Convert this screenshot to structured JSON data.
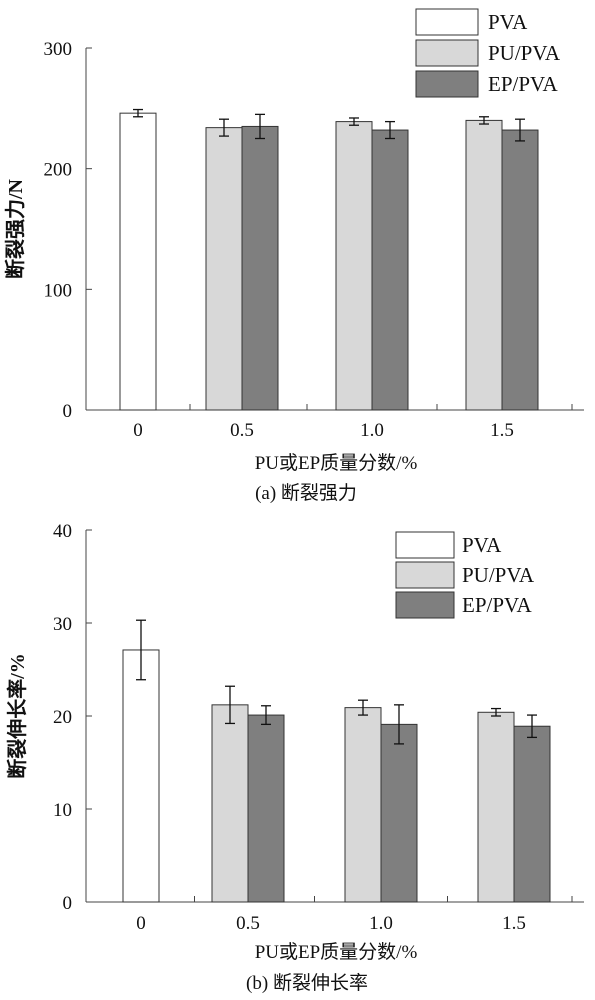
{
  "chart_data": [
    {
      "type": "bar",
      "categories": [
        "0",
        "0.5",
        "1.0",
        "1.5"
      ],
      "xlabel": "PU或EP质量分数/%",
      "ylabel": "断裂强力/N",
      "caption": "(a) 断裂强力",
      "ylim": [
        0,
        300
      ],
      "yticks": [
        0,
        100,
        200,
        300
      ],
      "series": [
        {
          "name": "PVA",
          "color": "#ffffff",
          "values": [
            246,
            null,
            null,
            null
          ],
          "errors": [
            3,
            null,
            null,
            null
          ]
        },
        {
          "name": "PU/PVA",
          "color": "#d8d8d8",
          "values": [
            null,
            234,
            239,
            240
          ],
          "errors": [
            null,
            7,
            3,
            3
          ]
        },
        {
          "name": "EP/PVA",
          "color": "#7f7f7f",
          "values": [
            null,
            235,
            232,
            232
          ],
          "errors": [
            null,
            10,
            7,
            9
          ]
        }
      ],
      "legend_position": "top-right",
      "grid": false
    },
    {
      "type": "bar",
      "categories": [
        "0",
        "0.5",
        "1.0",
        "1.5"
      ],
      "xlabel": "PU或EP质量分数/%",
      "ylabel": "断裂伸长率/%",
      "caption": "(b) 断裂伸长率",
      "ylim": [
        0,
        40
      ],
      "yticks": [
        0,
        10,
        20,
        30,
        40
      ],
      "series": [
        {
          "name": "PVA",
          "color": "#ffffff",
          "values": [
            27.1,
            null,
            null,
            null
          ],
          "errors": [
            3.2,
            null,
            null,
            null
          ]
        },
        {
          "name": "PU/PVA",
          "color": "#d8d8d8",
          "values": [
            null,
            21.2,
            20.9,
            20.4
          ],
          "errors": [
            null,
            2.0,
            0.8,
            0.4
          ]
        },
        {
          "name": "EP/PVA",
          "color": "#7f7f7f",
          "values": [
            null,
            20.1,
            19.1,
            18.9
          ],
          "errors": [
            null,
            1.0,
            2.1,
            1.2
          ]
        }
      ],
      "legend_position": "top-right",
      "grid": false
    }
  ]
}
